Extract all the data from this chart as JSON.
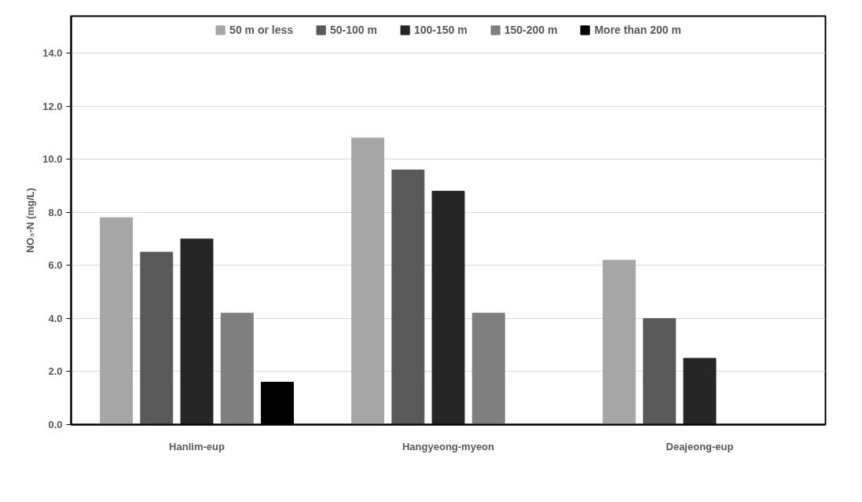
{
  "chart_data": {
    "type": "bar",
    "ylabel": "NO₃-N (mg/L)",
    "categories": [
      "Hanlim-eup",
      "Hangyeong-myeon",
      "Deajeong-eup"
    ],
    "series": [
      {
        "name": "50 m or less",
        "color": "#a6a6a6",
        "values": [
          7.8,
          10.8,
          6.2
        ]
      },
      {
        "name": "50-100 m",
        "color": "#595959",
        "values": [
          6.5,
          9.6,
          4.0
        ]
      },
      {
        "name": "100-150 m",
        "color": "#262626",
        "values": [
          7.0,
          8.8,
          2.5
        ]
      },
      {
        "name": "150-200 m",
        "color": "#7f7f7f",
        "values": [
          4.2,
          4.2,
          null
        ]
      },
      {
        "name": "More than 200 m",
        "color": "#000000",
        "values": [
          1.6,
          null,
          null
        ]
      }
    ],
    "ylim": [
      0,
      15.4
    ],
    "yticks": [
      {
        "value": 0,
        "label": "0.0"
      },
      {
        "value": 2,
        "label": "2.0"
      },
      {
        "value": 4,
        "label": "4.0"
      },
      {
        "value": 6,
        "label": "6.0"
      },
      {
        "value": 8,
        "label": "8.0"
      },
      {
        "value": 10,
        "label": "10.0"
      },
      {
        "value": 12,
        "label": "12.0"
      },
      {
        "value": 14,
        "label": "14.0"
      }
    ],
    "grid": "y",
    "legend": "top"
  }
}
